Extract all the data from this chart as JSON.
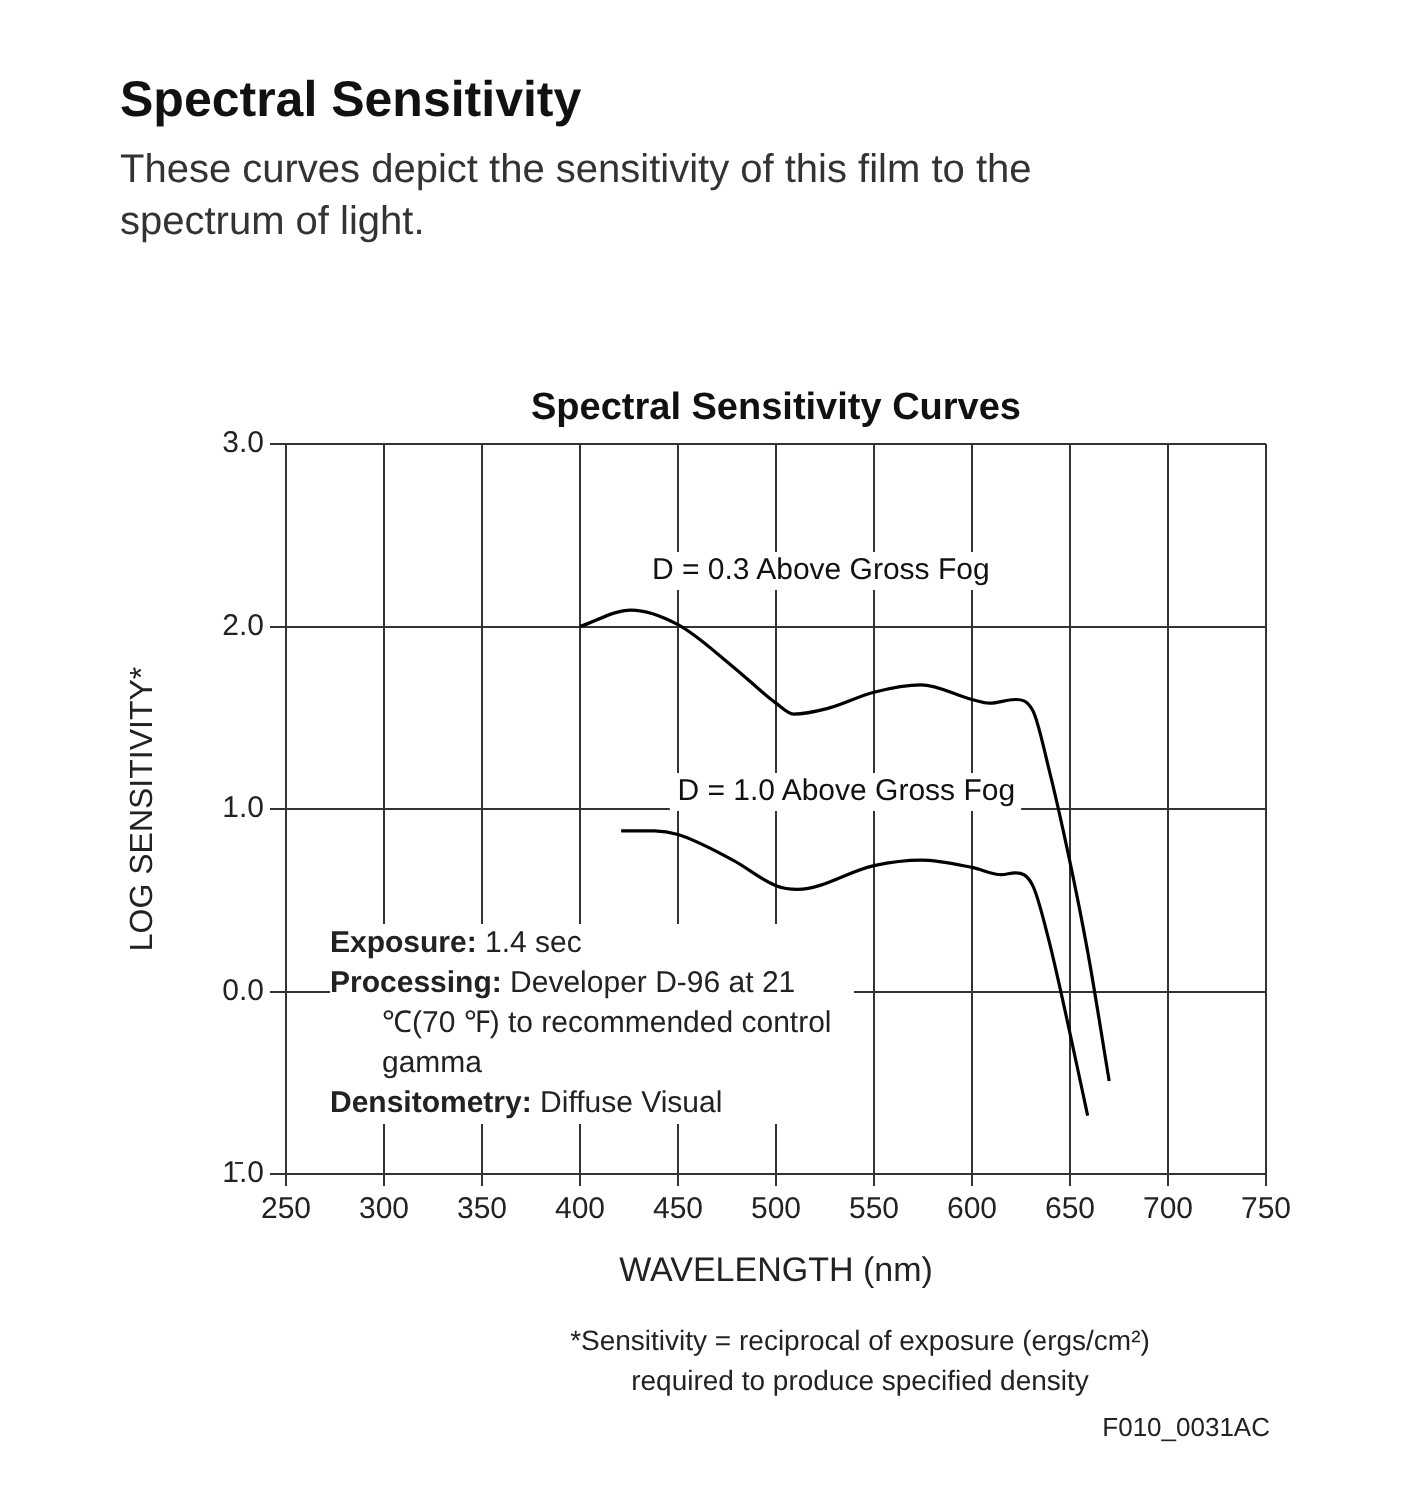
{
  "chart_data": {
    "type": "line",
    "title": "Spectral Sensitivity",
    "subtitle": "These curves depict the sensitivity of this film to the spectrum of light.",
    "xlabel": "WAVELENGTH (nm)",
    "ylabel": "LOG SENSITIVITY*",
    "annotations": [
      "Spectral Sensitivity Curves",
      "Exposure: 1.4 sec",
      "Processing: Developer D-96 at 21 ℃(70 ℉) to recommended control gamma",
      "Densitometry: Diffuse Visual",
      "*Sensitivity = reciprocal of exposure (ergs/cm²) required to produce specified density",
      "F010_0031AC"
    ],
    "series": [
      {
        "name": "D = 0.3 Above Gross Fog",
        "color": "#000000",
        "x": [
          400,
          426,
          450,
          478,
          500,
          509,
          526,
          550,
          574,
          600,
          609,
          622,
          631,
          639,
          649,
          659,
          670
        ],
        "values": [
          2.0,
          2.09,
          2.01,
          1.78,
          1.58,
          1.52,
          1.55,
          1.64,
          1.68,
          1.6,
          1.58,
          1.6,
          1.54,
          1.23,
          0.76,
          0.22,
          -0.49
        ]
      },
      {
        "name": "D = 1.0 Above Gross Fog",
        "color": "#000000",
        "x": [
          421,
          438,
          450,
          478,
          500,
          511,
          550,
          574,
          600,
          615,
          622,
          631,
          639,
          649,
          659
        ],
        "values": [
          0.88,
          0.88,
          0.86,
          0.72,
          0.58,
          0.56,
          0.69,
          0.72,
          0.68,
          0.64,
          0.65,
          0.58,
          0.29,
          -0.18,
          -0.68
        ]
      }
    ],
    "xlim": [
      250,
      750
    ],
    "xticks": [
      250,
      300,
      350,
      400,
      450,
      500,
      550,
      600,
      650,
      700,
      750
    ],
    "ylim": [
      -1,
      3
    ],
    "yticks": [
      {
        "value": -1,
        "label": "1̄.0"
      },
      {
        "value": 0,
        "label": "0.0"
      },
      {
        "value": 1,
        "label": "1.0"
      },
      {
        "value": 2,
        "label": "2.0"
      },
      {
        "value": 3,
        "label": "3.0"
      }
    ],
    "grid": true,
    "legend": false,
    "marker": "none",
    "line_style": "solid"
  }
}
